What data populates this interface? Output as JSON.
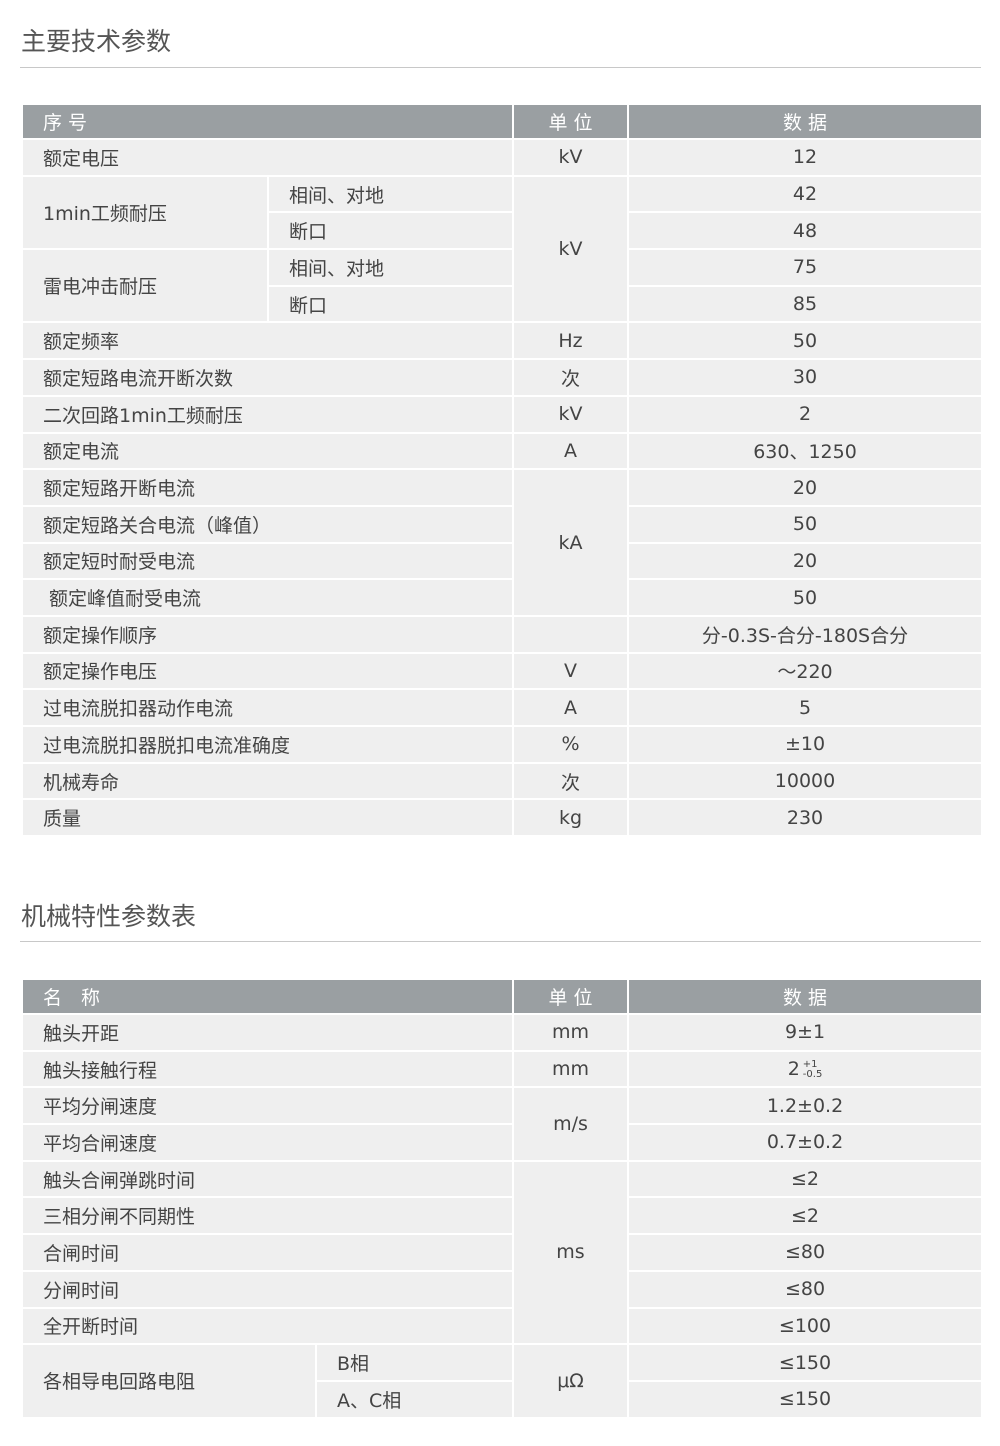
{
  "section1": {
    "title": "主要技术参数",
    "headers": {
      "name": "序 号",
      "unit": "单 位",
      "value": "数 据"
    },
    "rows": [
      {
        "name": "额定电压",
        "unit": "kV",
        "value": "12"
      },
      {
        "name": "1min工频耐压",
        "sub": "相间、对地",
        "unit": "kV",
        "value": "42"
      },
      {
        "sub": "断口",
        "value": "48"
      },
      {
        "name": "雷电冲击耐压",
        "sub": "相间、对地",
        "value": "75"
      },
      {
        "sub": "断口",
        "value": "85"
      },
      {
        "name": "额定频率",
        "unit": "Hz",
        "value": "50"
      },
      {
        "name": "额定短路电流开断次数",
        "unit": "次",
        "value": "30"
      },
      {
        "name": "二次回路1min工频耐压",
        "unit": "kV",
        "value": "2"
      },
      {
        "name": "额定电流",
        "unit": "A",
        "value": "630、1250"
      },
      {
        "name": "额定短路开断电流",
        "unit": "kA",
        "value": "20"
      },
      {
        "name": "额定短路关合电流（峰值）",
        "value": "50"
      },
      {
        "name": "额定短时耐受电流",
        "value": "20"
      },
      {
        "name": " 额定峰值耐受电流",
        "value": "50"
      },
      {
        "name": "额定操作顺序",
        "unit": "",
        "value": "分-0.3S-合分-180S合分"
      },
      {
        "name": "额定操作电压",
        "unit": "V",
        "value": "～220"
      },
      {
        "name": "过电流脱扣器动作电流",
        "unit": "A",
        "value": "5"
      },
      {
        "name": "过电流脱扣器脱扣电流准确度",
        "unit": "%",
        "value": "±10"
      },
      {
        "name": "机械寿命",
        "unit": "次",
        "value": "10000"
      },
      {
        "name": "质量",
        "unit": "kg",
        "value": "230"
      }
    ]
  },
  "section2": {
    "title": "机械特性参数表",
    "headers": {
      "name": "名　称",
      "unit": "单 位",
      "value": "数 据"
    },
    "rows": [
      {
        "name": "触头开距",
        "unit": "mm",
        "value": "9±1"
      },
      {
        "name": "触头接触行程",
        "unit": "mm",
        "value": "2",
        "tol_plus": "+1",
        "tol_minus": "-0.5"
      },
      {
        "name": "平均分闸速度",
        "unit": "m/s",
        "value": "1.2±0.2"
      },
      {
        "name": "平均合闸速度",
        "value": "0.7±0.2"
      },
      {
        "name": "触头合闸弹跳时间",
        "unit": "ms",
        "value": "≤2"
      },
      {
        "name": "三相分闸不同期性",
        "value": "≤2"
      },
      {
        "name": "合闸时间",
        "value": "≤80"
      },
      {
        "name": "分闸时间",
        "value": "≤80"
      },
      {
        "name": "全开断时间",
        "value": "≤100"
      },
      {
        "name": "各相导电回路电阻",
        "sub": "B相",
        "unit": "μΩ",
        "value": "≤150"
      },
      {
        "sub": "A、C相",
        "value": "≤150"
      }
    ]
  },
  "colors": {
    "header_bg": "#9a9fa2",
    "row_bg": "#efefef",
    "text": "#444444"
  }
}
